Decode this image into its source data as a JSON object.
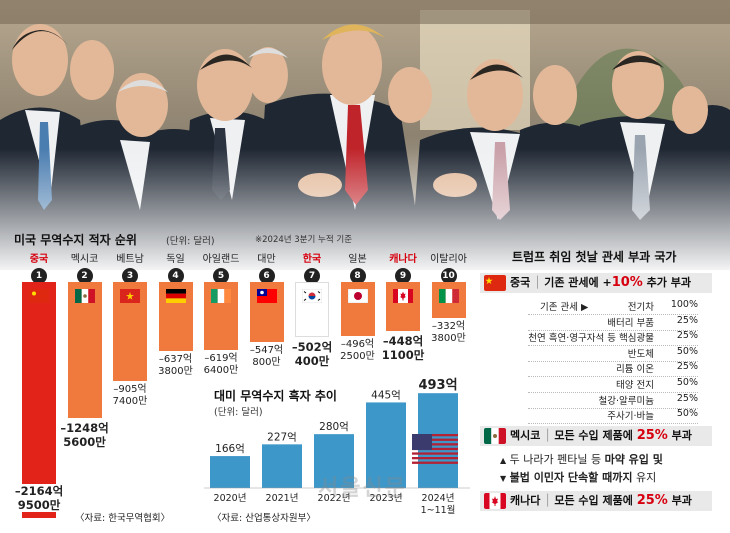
{
  "watermark": "서울신문",
  "left_chart": {
    "title": "미국 무역수지 적자 순위",
    "unit": "(단위: 달러)",
    "note": "※2024년 3분기 누적 기준",
    "source": "〈자료: 한국무역협회〉",
    "bar_color": "#f07a3d",
    "china_color": "#e2231a",
    "korea_color": "#ffffff"
  },
  "right_panel": {
    "title": "트럼프 취임 첫날 관세 부과 국가",
    "china_header": {
      "country": "중국",
      "text_a": "기존 관세에 +",
      "pct": "10%",
      "text_b": " 추가 부과"
    },
    "existing_label": "기존 관세",
    "tariff_rows": [
      {
        "item": "전기차",
        "rate": "100%"
      },
      {
        "item": "배터리 부품",
        "rate": "25%"
      },
      {
        "item": "천연 흑연·영구자석 등 핵심광물",
        "rate": "25%"
      },
      {
        "item": "반도체",
        "rate": "50%"
      },
      {
        "item": "리튬 이온",
        "rate": "25%"
      },
      {
        "item": "태양 전지",
        "rate": "50%"
      },
      {
        "item": "철강·알루미늄",
        "rate": "25%"
      },
      {
        "item": "주사기·바늘",
        "rate": "50%"
      }
    ],
    "mexico_header": {
      "country": "멕시코",
      "text_a": "모든 수입 제품에 ",
      "pct": "25%",
      "text_b": " 부과"
    },
    "mexico_note_1a": "두 나라가 펜타닐 등 ",
    "mexico_note_1b": "마약 유입 및",
    "mexico_note_2a": "불법 이민자 단속할 때까지",
    "mexico_note_2b": " 유지",
    "canada_header": {
      "country": "캐나다",
      "text_a": "모든 수입 제품에 ",
      "pct": "25%",
      "text_b": " 부과"
    }
  },
  "chart_data": [
    {
      "type": "bar",
      "title": "미국 무역수지 적자 순위",
      "ylabel": "(단위: 달러)",
      "categories": [
        "중국",
        "멕시코",
        "베트남",
        "독일",
        "아일랜드",
        "대만",
        "한국",
        "일본",
        "캐나다",
        "이탈리아"
      ],
      "ranks": [
        "1",
        "2",
        "3",
        "4",
        "5",
        "6",
        "7",
        "8",
        "9",
        "10"
      ],
      "flags": [
        "china-flag",
        "mexico-flag",
        "vietnam-flag",
        "germany-flag",
        "ireland-flag",
        "taiwan-flag",
        "korea-flag",
        "japan-flag",
        "canada-flag",
        "italy-flag"
      ],
      "values": [
        -2164.95,
        -1248.56,
        -905.74,
        -637.38,
        -619.64,
        -547.08,
        -502.04,
        -496.25,
        -448.11,
        -332.38
      ],
      "labels_line1": [
        "–2164억",
        "–1248억",
        "–905억",
        "–637억",
        "–619억",
        "–547억",
        "–502억",
        "–496억",
        "–448억",
        "–332억"
      ],
      "labels_line2": [
        "9500만",
        "5600만",
        "7400만",
        "3800만",
        "6400만",
        "800만",
        "400만",
        "2500만",
        "1100만",
        "3800만"
      ],
      "highlight": [
        "중국",
        "한국",
        "캐나다"
      ]
    },
    {
      "type": "bar",
      "title": "대미 무역수지 흑자 추이",
      "ylabel": "(단위: 달러)",
      "source": "〈자료: 산업통상자원부〉",
      "categories": [
        "2020년",
        "2021년",
        "2022년",
        "2023년",
        "2024년 1~11월"
      ],
      "cat_line1": [
        "2020년",
        "2021년",
        "2022년",
        "2023년",
        "2024년"
      ],
      "cat_line2": [
        "",
        "",
        "",
        "",
        "1~11월"
      ],
      "values": [
        166,
        227,
        280,
        445,
        493
      ],
      "value_labels": [
        "166억",
        "227억",
        "280억",
        "445억",
        "493억"
      ],
      "ylim": [
        0,
        520
      ],
      "color": "#3d97c9"
    }
  ]
}
